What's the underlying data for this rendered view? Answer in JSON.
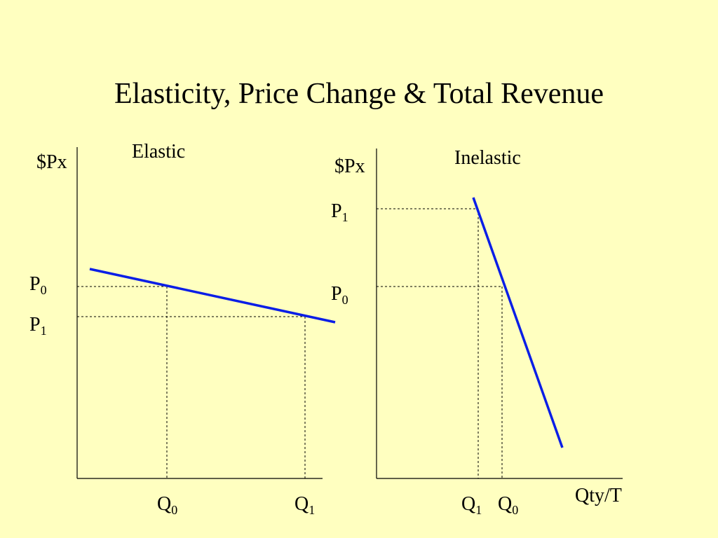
{
  "slide": {
    "title": "Elasticity, Price Change & Total Revenue"
  },
  "left_panel": {
    "heading": "Elastic",
    "y_axis_label": "$Px",
    "price_labels": [
      {
        "main": "P",
        "sub": "0"
      },
      {
        "main": "P",
        "sub": "1"
      }
    ],
    "qty_labels": [
      {
        "main": "Q",
        "sub": "0"
      },
      {
        "main": "Q",
        "sub": "1"
      }
    ]
  },
  "right_panel": {
    "heading": "Inelastic",
    "y_axis_label": "$Px",
    "x_axis_label": "Qty/T",
    "price_labels": [
      {
        "main": "P",
        "sub": "1"
      },
      {
        "main": "P",
        "sub": "0"
      }
    ],
    "qty_labels": [
      {
        "main": "Q",
        "sub": "1"
      },
      {
        "main": "Q",
        "sub": "0"
      }
    ]
  },
  "colors": {
    "background": "#ffffc0",
    "demand_line": "#0a1ee6",
    "axis": "#000000"
  }
}
